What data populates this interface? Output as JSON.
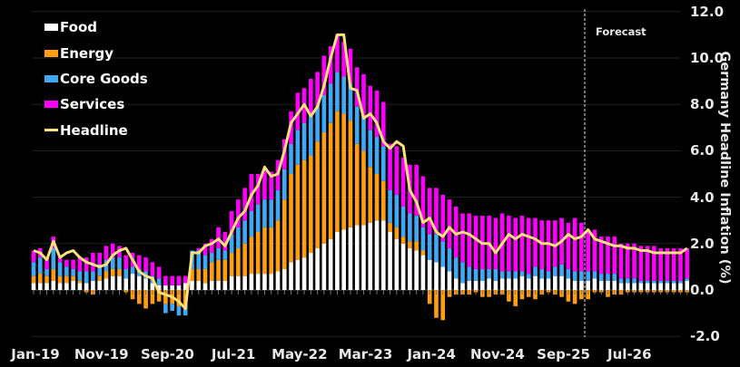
{
  "chart_data": {
    "type": "bar",
    "stacked": true,
    "title": "",
    "xlabel": "",
    "ylabel": "Germany Headline Inflation (%)",
    "ylim": [
      -2.0,
      12.0
    ],
    "yticks": [
      "12.0",
      "10.0",
      "8.0",
      "6.0",
      "4.0",
      "2.0",
      "0.0",
      "-2.0"
    ],
    "ytick_values": [
      12,
      10,
      8,
      6,
      4,
      2,
      0,
      -2
    ],
    "xtick_labels": [
      "Jan-19",
      "Nov-19",
      "Sep-20",
      "Jul-21",
      "May-22",
      "Mar-23",
      "Jan-24",
      "Nov-24",
      "Sep-25",
      "Jul-26"
    ],
    "xtick_index": [
      0,
      10,
      20,
      30,
      40,
      50,
      60,
      70,
      80,
      90
    ],
    "grid": true,
    "legend_position": "top-left",
    "annotation": {
      "text": "Forecast",
      "index": 83.5
    },
    "colors": {
      "Food": "#ffffff",
      "Energy": "#ff9f0f",
      "Core Goods": "#3fa9f5",
      "Services": "#ff00ff",
      "Headline": "#ffe07a"
    },
    "series": [
      {
        "name": "Food",
        "values": [
          0.3,
          0.3,
          0.3,
          0.4,
          0.3,
          0.3,
          0.4,
          0.3,
          0.3,
          0.4,
          0.4,
          0.5,
          0.6,
          0.6,
          0.5,
          0.7,
          0.6,
          0.5,
          0.3,
          0.2,
          0.2,
          0.2,
          0.2,
          0.3,
          0.4,
          0.4,
          0.3,
          0.4,
          0.4,
          0.4,
          0.6,
          0.6,
          0.6,
          0.7,
          0.7,
          0.7,
          0.7,
          0.8,
          0.9,
          1.2,
          1.3,
          1.4,
          1.6,
          1.8,
          2.0,
          2.2,
          2.5,
          2.6,
          2.7,
          2.8,
          2.8,
          2.9,
          3.0,
          3.0,
          2.5,
          2.2,
          2.0,
          1.8,
          1.7,
          1.5,
          1.3,
          1.2,
          1.0,
          0.8,
          0.5,
          0.3,
          0.4,
          0.4,
          0.4,
          0.5,
          0.4,
          0.5,
          0.5,
          0.5,
          0.6,
          0.5,
          0.6,
          0.5,
          0.5,
          0.6,
          0.6,
          0.5,
          0.4,
          0.4,
          0.4,
          0.5,
          0.4,
          0.4,
          0.4,
          0.3,
          0.3,
          0.3,
          0.3,
          0.3,
          0.3,
          0.3,
          0.3,
          0.3,
          0.3,
          0.4
        ]
      },
      {
        "name": "Energy",
        "values": [
          0.3,
          0.4,
          0.3,
          0.5,
          0.3,
          0.3,
          0.2,
          0.1,
          -0.1,
          -0.2,
          0.2,
          0.3,
          0.3,
          0.3,
          -0.1,
          -0.4,
          -0.6,
          -0.8,
          -0.6,
          -0.5,
          -0.6,
          -0.6,
          -0.7,
          -0.7,
          0.5,
          0.5,
          0.6,
          0.8,
          0.9,
          0.9,
          1.0,
          1.2,
          1.4,
          1.6,
          1.8,
          2.0,
          2.0,
          2.2,
          3.0,
          3.8,
          4.1,
          4.2,
          4.2,
          4.6,
          4.8,
          5.0,
          5.2,
          5.0,
          4.6,
          3.5,
          3.2,
          2.4,
          2.0,
          1.7,
          0.4,
          0.5,
          0.3,
          0.3,
          0.4,
          0.2,
          -0.6,
          -1.2,
          -1.3,
          -0.3,
          -0.2,
          -0.2,
          -0.2,
          -0.1,
          -0.3,
          -0.3,
          -0.2,
          -0.2,
          -0.5,
          -0.7,
          -0.4,
          -0.3,
          -0.4,
          -0.2,
          -0.1,
          -0.2,
          -0.3,
          -0.5,
          -0.6,
          -0.4,
          -0.4,
          -0.1,
          -0.1,
          -0.3,
          -0.2,
          -0.2,
          -0.1,
          -0.1,
          -0.1,
          -0.1,
          -0.1,
          -0.1,
          -0.1,
          -0.1,
          -0.1,
          -0.1
        ]
      },
      {
        "name": "Core Goods",
        "values": [
          0.6,
          0.7,
          0.3,
          0.9,
          0.6,
          0.4,
          0.3,
          0.4,
          0.5,
          0.4,
          0.5,
          0.5,
          0.5,
          0.5,
          0.4,
          0.3,
          0.3,
          0.3,
          0.3,
          0.3,
          -0.4,
          -0.3,
          -0.4,
          -0.4,
          0.8,
          0.8,
          0.6,
          0.4,
          0.5,
          0.4,
          0.8,
          0.9,
          1.0,
          1.1,
          1.2,
          1.2,
          1.2,
          1.3,
          1.3,
          1.3,
          1.5,
          1.6,
          1.7,
          1.5,
          1.6,
          1.7,
          1.7,
          1.6,
          1.6,
          1.6,
          1.5,
          1.6,
          1.6,
          1.5,
          1.4,
          1.4,
          1.3,
          1.2,
          1.1,
          1.0,
          1.1,
          1.2,
          1.1,
          1.0,
          0.9,
          0.9,
          0.6,
          0.5,
          0.5,
          0.4,
          0.5,
          0.3,
          0.3,
          0.3,
          0.2,
          0.2,
          0.4,
          0.4,
          0.3,
          0.4,
          0.5,
          0.4,
          0.4,
          0.4,
          0.4,
          0.3,
          0.3,
          0.3,
          0.3,
          0.2,
          0.2,
          0.2,
          0.1,
          0.1,
          0.1,
          0.1,
          0.1,
          0.1,
          0.1,
          0.1
        ]
      },
      {
        "name": "Services",
        "values": [
          0.5,
          0.4,
          0.5,
          0.5,
          0.2,
          0.3,
          0.4,
          0.6,
          0.6,
          0.8,
          0.5,
          0.6,
          0.6,
          0.5,
          0.6,
          0.6,
          0.6,
          0.6,
          0.6,
          0.5,
          0.4,
          0.4,
          0.4,
          0.3,
          0.0,
          0.1,
          0.5,
          0.6,
          0.9,
          0.8,
          1.0,
          1.2,
          1.4,
          1.6,
          1.3,
          1.3,
          1.2,
          1.3,
          1.3,
          1.4,
          1.6,
          1.5,
          1.6,
          1.5,
          1.7,
          1.6,
          1.6,
          1.5,
          1.5,
          1.7,
          1.8,
          1.9,
          2.0,
          1.9,
          2.0,
          2.1,
          2.1,
          2.1,
          2.2,
          2.2,
          2.0,
          2.0,
          2.0,
          2.1,
          2.2,
          2.1,
          2.3,
          2.3,
          2.3,
          2.3,
          2.2,
          2.5,
          2.4,
          2.3,
          2.4,
          2.4,
          2.1,
          2.1,
          2.2,
          2.0,
          2.0,
          2.0,
          2.3,
          2.1,
          1.8,
          1.8,
          1.6,
          1.6,
          1.6,
          1.5,
          1.5,
          1.5,
          1.5,
          1.5,
          1.5,
          1.4,
          1.4,
          1.4,
          1.4,
          1.3
        ]
      },
      {
        "name": "Headline",
        "values": [
          1.7,
          1.6,
          1.3,
          2.1,
          1.4,
          1.6,
          1.7,
          1.4,
          1.2,
          1.1,
          1.0,
          1.1,
          1.5,
          1.7,
          1.8,
          1.3,
          0.8,
          0.6,
          0.5,
          -0.1,
          -0.2,
          -0.3,
          -0.5,
          -0.8,
          1.6,
          1.6,
          1.9,
          2.0,
          2.2,
          1.9,
          2.5,
          3.1,
          3.4,
          4.1,
          4.5,
          5.3,
          4.9,
          5.0,
          6.0,
          7.2,
          7.6,
          8.0,
          7.5,
          7.9,
          8.8,
          10.0,
          11.0,
          11.0,
          8.7,
          8.6,
          7.4,
          7.6,
          7.2,
          6.4,
          6.1,
          6.4,
          6.2,
          4.3,
          3.8,
          2.9,
          3.1,
          2.5,
          2.3,
          2.7,
          2.4,
          2.5,
          2.4,
          2.2,
          2.0,
          2.0,
          1.6,
          2.0,
          2.4,
          2.2,
          2.4,
          2.3,
          2.2,
          2.0,
          2.0,
          1.9,
          2.1,
          2.4,
          2.2,
          2.3,
          2.6,
          2.2,
          2.1,
          2.0,
          1.9,
          1.9,
          1.8,
          1.8,
          1.7,
          1.7,
          1.6,
          1.6,
          1.6,
          1.6,
          1.6,
          1.8
        ]
      }
    ]
  },
  "legend": {
    "items": [
      {
        "label": "Food",
        "color": "#ffffff"
      },
      {
        "label": "Energy",
        "color": "#ff9f0f"
      },
      {
        "label": "Core Goods",
        "color": "#3fa9f5"
      },
      {
        "label": "Services",
        "color": "#ff00ff"
      },
      {
        "label": "Headline",
        "color": "#ffe07a"
      }
    ]
  },
  "axis": {
    "ylabel": "Germany Headline Inflation (%)",
    "forecast_label": "Forecast"
  }
}
